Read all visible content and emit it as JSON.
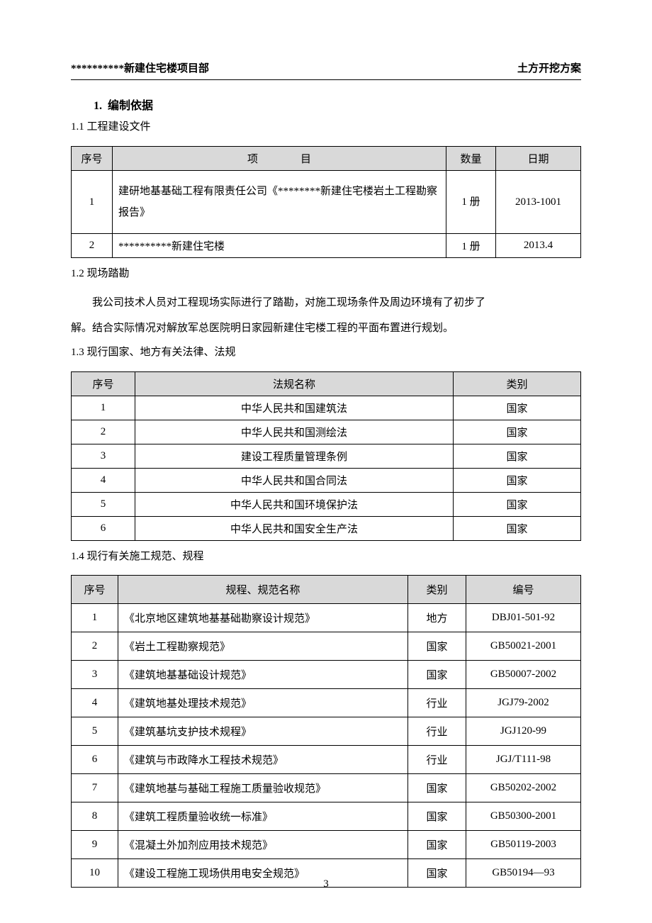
{
  "header": {
    "left": "**********新建住宅楼项目部",
    "right": "土方开挖方案"
  },
  "section1": {
    "num": "1.",
    "title": "编制依据"
  },
  "sub1_1": "1.1 工程建设文件",
  "table1": {
    "headers": [
      "序号",
      "项　　　　目",
      "数量",
      "日期"
    ],
    "rows": [
      {
        "no": "1",
        "item": "建研地基基础工程有限责任公司《********新建住宅楼岩土工程勘察报告》",
        "qty": "1 册",
        "date": "2013-1001"
      },
      {
        "no": "2",
        "item": "**********新建住宅楼",
        "qty": "1 册",
        "date": "2013.4"
      }
    ],
    "col_widths": [
      "58px",
      "auto",
      "70px",
      "120px"
    ]
  },
  "sub1_2": "1.2 现场踏勘",
  "para1": "我公司技术人员对工程现场实际进行了踏勘，对施工现场条件及周边环境有了初步了",
  "para2": "解。结合实际情况对解放军总医院明日家园新建住宅楼工程的平面布置进行规划。",
  "sub1_3": "1.3 现行国家、地方有关法律、法规",
  "table3": {
    "headers": [
      "序号",
      "法规名称",
      "类别"
    ],
    "rows": [
      {
        "no": "1",
        "name": "中华人民共和国建筑法",
        "cat": "国家"
      },
      {
        "no": "2",
        "name": "中华人民共和国测绘法",
        "cat": "国家"
      },
      {
        "no": "3",
        "name": "建设工程质量管理条例",
        "cat": "国家"
      },
      {
        "no": "4",
        "name": "中华人民共和国合同法",
        "cat": "国家"
      },
      {
        "no": "5",
        "name": "中华人民共和国环境保护法",
        "cat": "国家"
      },
      {
        "no": "6",
        "name": "中华人民共和国安全生产法",
        "cat": "国家"
      }
    ],
    "col_widths": [
      "90px",
      "auto",
      "180px"
    ]
  },
  "sub1_4": "1.4 现行有关施工规范、规程",
  "table4": {
    "headers": [
      "序号",
      "规程、规范名称",
      "类别",
      "编号"
    ],
    "rows": [
      {
        "no": "1",
        "name": "《北京地区建筑地基基础勘察设计规范》",
        "cat": "地方",
        "code": "DBJ01-501-92"
      },
      {
        "no": "2",
        "name": "《岩土工程勘察规范》",
        "cat": "国家",
        "code": "GB50021-2001"
      },
      {
        "no": "3",
        "name": "《建筑地基基础设计规范》",
        "cat": "国家",
        "code": "GB50007-2002"
      },
      {
        "no": "4",
        "name": "《建筑地基处理技术规范》",
        "cat": "行业",
        "code": "JGJ79-2002"
      },
      {
        "no": "5",
        "name": "《建筑基坑支护技术规程》",
        "cat": "行业",
        "code": "JGJ120-99"
      },
      {
        "no": "6",
        "name": "《建筑与市政降水工程技术规范》",
        "cat": "行业",
        "code": "JGJ/T111-98"
      },
      {
        "no": "7",
        "name": "《建筑地基与基础工程施工质量验收规范》",
        "cat": "国家",
        "code": "GB50202-2002"
      },
      {
        "no": "8",
        "name": "《建筑工程质量验收统一标准》",
        "cat": "国家",
        "code": "GB50300-2001"
      },
      {
        "no": "9",
        "name": "《混凝土外加剂应用技术规范》",
        "cat": "国家",
        "code": "GB50119-2003"
      },
      {
        "no": "10",
        "name": "《建设工程施工现场供用电安全规范》",
        "cat": "国家",
        "code": "GB50194—93"
      }
    ],
    "col_widths": [
      "66px",
      "auto",
      "82px",
      "162px"
    ]
  },
  "page_num": "3",
  "colors": {
    "th_bg": "#d9d9d9",
    "border": "#000000",
    "text": "#000000",
    "bg": "#ffffff"
  }
}
